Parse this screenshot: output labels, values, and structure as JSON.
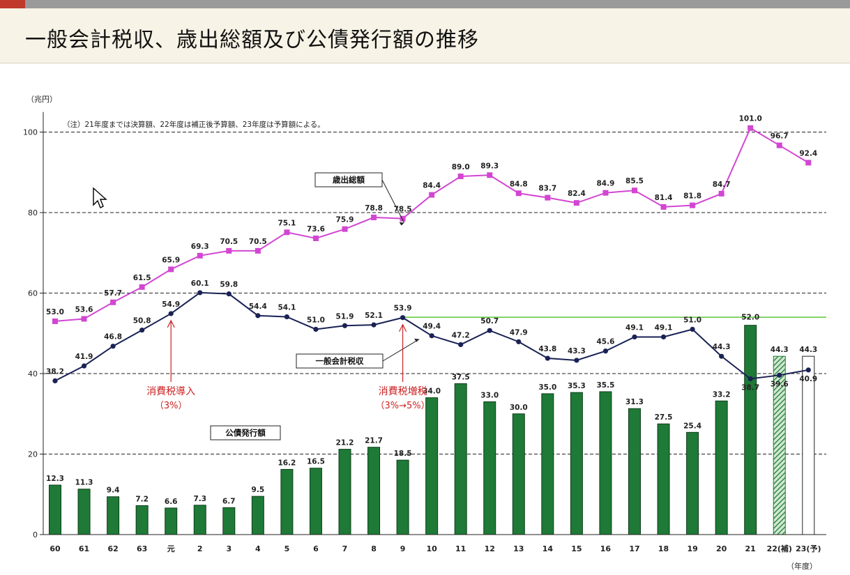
{
  "title": "一般会計税収、歳出総額及び公債発行額の推移",
  "colors": {
    "bond_bar": "#1e7a36",
    "expenditure_line": "#d246d2",
    "tax_line": "#1a2255",
    "reference_line": "#66cc44",
    "annotation": "#cc2222"
  },
  "cursor_icon": "arrow-cursor-icon",
  "chart_data": {
    "type": "bar",
    "unit_label": "（兆円）",
    "xlabel": "（年度）",
    "note": "（注）21年度までは決算額、22年度は補正後予算額、23年度は予算額による。",
    "ylim": [
      0,
      105
    ],
    "yticks": [
      0,
      20,
      40,
      60,
      80,
      100
    ],
    "grid": "dashed-horizontal",
    "categories": [
      "60",
      "61",
      "62",
      "63",
      "元",
      "2",
      "3",
      "4",
      "5",
      "6",
      "7",
      "8",
      "9",
      "10",
      "11",
      "12",
      "13",
      "14",
      "15",
      "16",
      "17",
      "18",
      "19",
      "20",
      "21",
      "22(補)",
      "23(予)"
    ],
    "series": [
      {
        "name": "歳出総額",
        "kind": "line",
        "marker": "square",
        "values": [
          53.0,
          53.6,
          57.7,
          61.5,
          65.9,
          69.3,
          70.5,
          70.5,
          75.1,
          73.6,
          75.9,
          78.8,
          78.5,
          84.4,
          89.0,
          89.3,
          84.8,
          83.7,
          82.4,
          84.9,
          85.5,
          81.4,
          81.8,
          84.7,
          101.0,
          96.7,
          92.4
        ],
        "labels": [
          "53.0",
          "53.6",
          "57.7",
          "61.5",
          "65.9",
          "69.3",
          "70.5",
          "70.5",
          "75.1",
          "73.6",
          "75.9",
          "78.8",
          "78.5",
          "84.4",
          "89.0",
          "89.3",
          "84.8",
          "83.7",
          "82.4",
          "84.9",
          "85.5",
          "81.4",
          "81.8",
          "84.7",
          "101.0",
          "96.7",
          "92.4"
        ]
      },
      {
        "name": "一般会計税収",
        "kind": "line",
        "marker": "circle",
        "values": [
          38.2,
          41.9,
          46.8,
          50.8,
          54.9,
          60.1,
          59.8,
          54.4,
          54.1,
          51.0,
          51.9,
          52.1,
          53.9,
          49.4,
          47.2,
          50.7,
          47.9,
          43.8,
          43.3,
          45.6,
          49.1,
          49.1,
          51.0,
          44.3,
          38.7,
          39.6,
          40.9
        ],
        "labels": [
          "38.2",
          "41.9",
          "46.8",
          "50.8",
          "54.9",
          "60.1",
          "59.8",
          "54.4",
          "54.1",
          "51.0",
          "51.9",
          "52.1",
          "53.9",
          "49.4",
          "47.2",
          "50.7",
          "47.9",
          "43.8",
          "43.3",
          "45.6",
          "49.1",
          "49.1",
          "51.0",
          "44.3",
          "38.7",
          "39.6",
          "40.9"
        ]
      },
      {
        "name": "公債発行額",
        "kind": "bar",
        "values": [
          12.3,
          11.3,
          9.4,
          7.2,
          6.6,
          7.3,
          6.7,
          9.5,
          16.2,
          16.5,
          21.2,
          21.7,
          18.5,
          34.0,
          37.5,
          33.0,
          30.0,
          35.0,
          35.3,
          35.5,
          31.3,
          27.5,
          25.4,
          33.2,
          52.0,
          44.3,
          44.3
        ],
        "labels": [
          "12.3",
          "11.3",
          "9.4",
          "7.2",
          "6.6",
          "7.3",
          "6.7",
          "9.5",
          "16.2",
          "16.5",
          "21.2",
          "21.7",
          "18.5",
          "34.0",
          "37.5",
          "33.0",
          "30.0",
          "35.0",
          "35.3",
          "35.5",
          "31.3",
          "27.5",
          "25.4",
          "33.2",
          "52.0",
          "44.3",
          "44.3"
        ],
        "styles": [
          "solid",
          "solid",
          "solid",
          "solid",
          "solid",
          "solid",
          "solid",
          "solid",
          "solid",
          "solid",
          "solid",
          "solid",
          "solid",
          "solid",
          "solid",
          "solid",
          "solid",
          "solid",
          "solid",
          "solid",
          "solid",
          "solid",
          "solid",
          "solid",
          "solid",
          "hatched",
          "outline"
        ]
      }
    ],
    "reference_line": {
      "value": 54.0,
      "from_category": "9"
    },
    "series_callouts": [
      {
        "series": "歳出総額",
        "text": "歳出総額",
        "target_category": "9"
      },
      {
        "series": "一般会計税収",
        "text": "一般会計税収",
        "target_category": "10"
      },
      {
        "series": "公債発行額",
        "text": "公債発行額"
      }
    ],
    "annotations": [
      {
        "category": "元",
        "line1": "消費税導入",
        "line2": "（3%）"
      },
      {
        "category": "9",
        "line1": "消費税増税",
        "line2": "（3%→5%）"
      }
    ]
  }
}
